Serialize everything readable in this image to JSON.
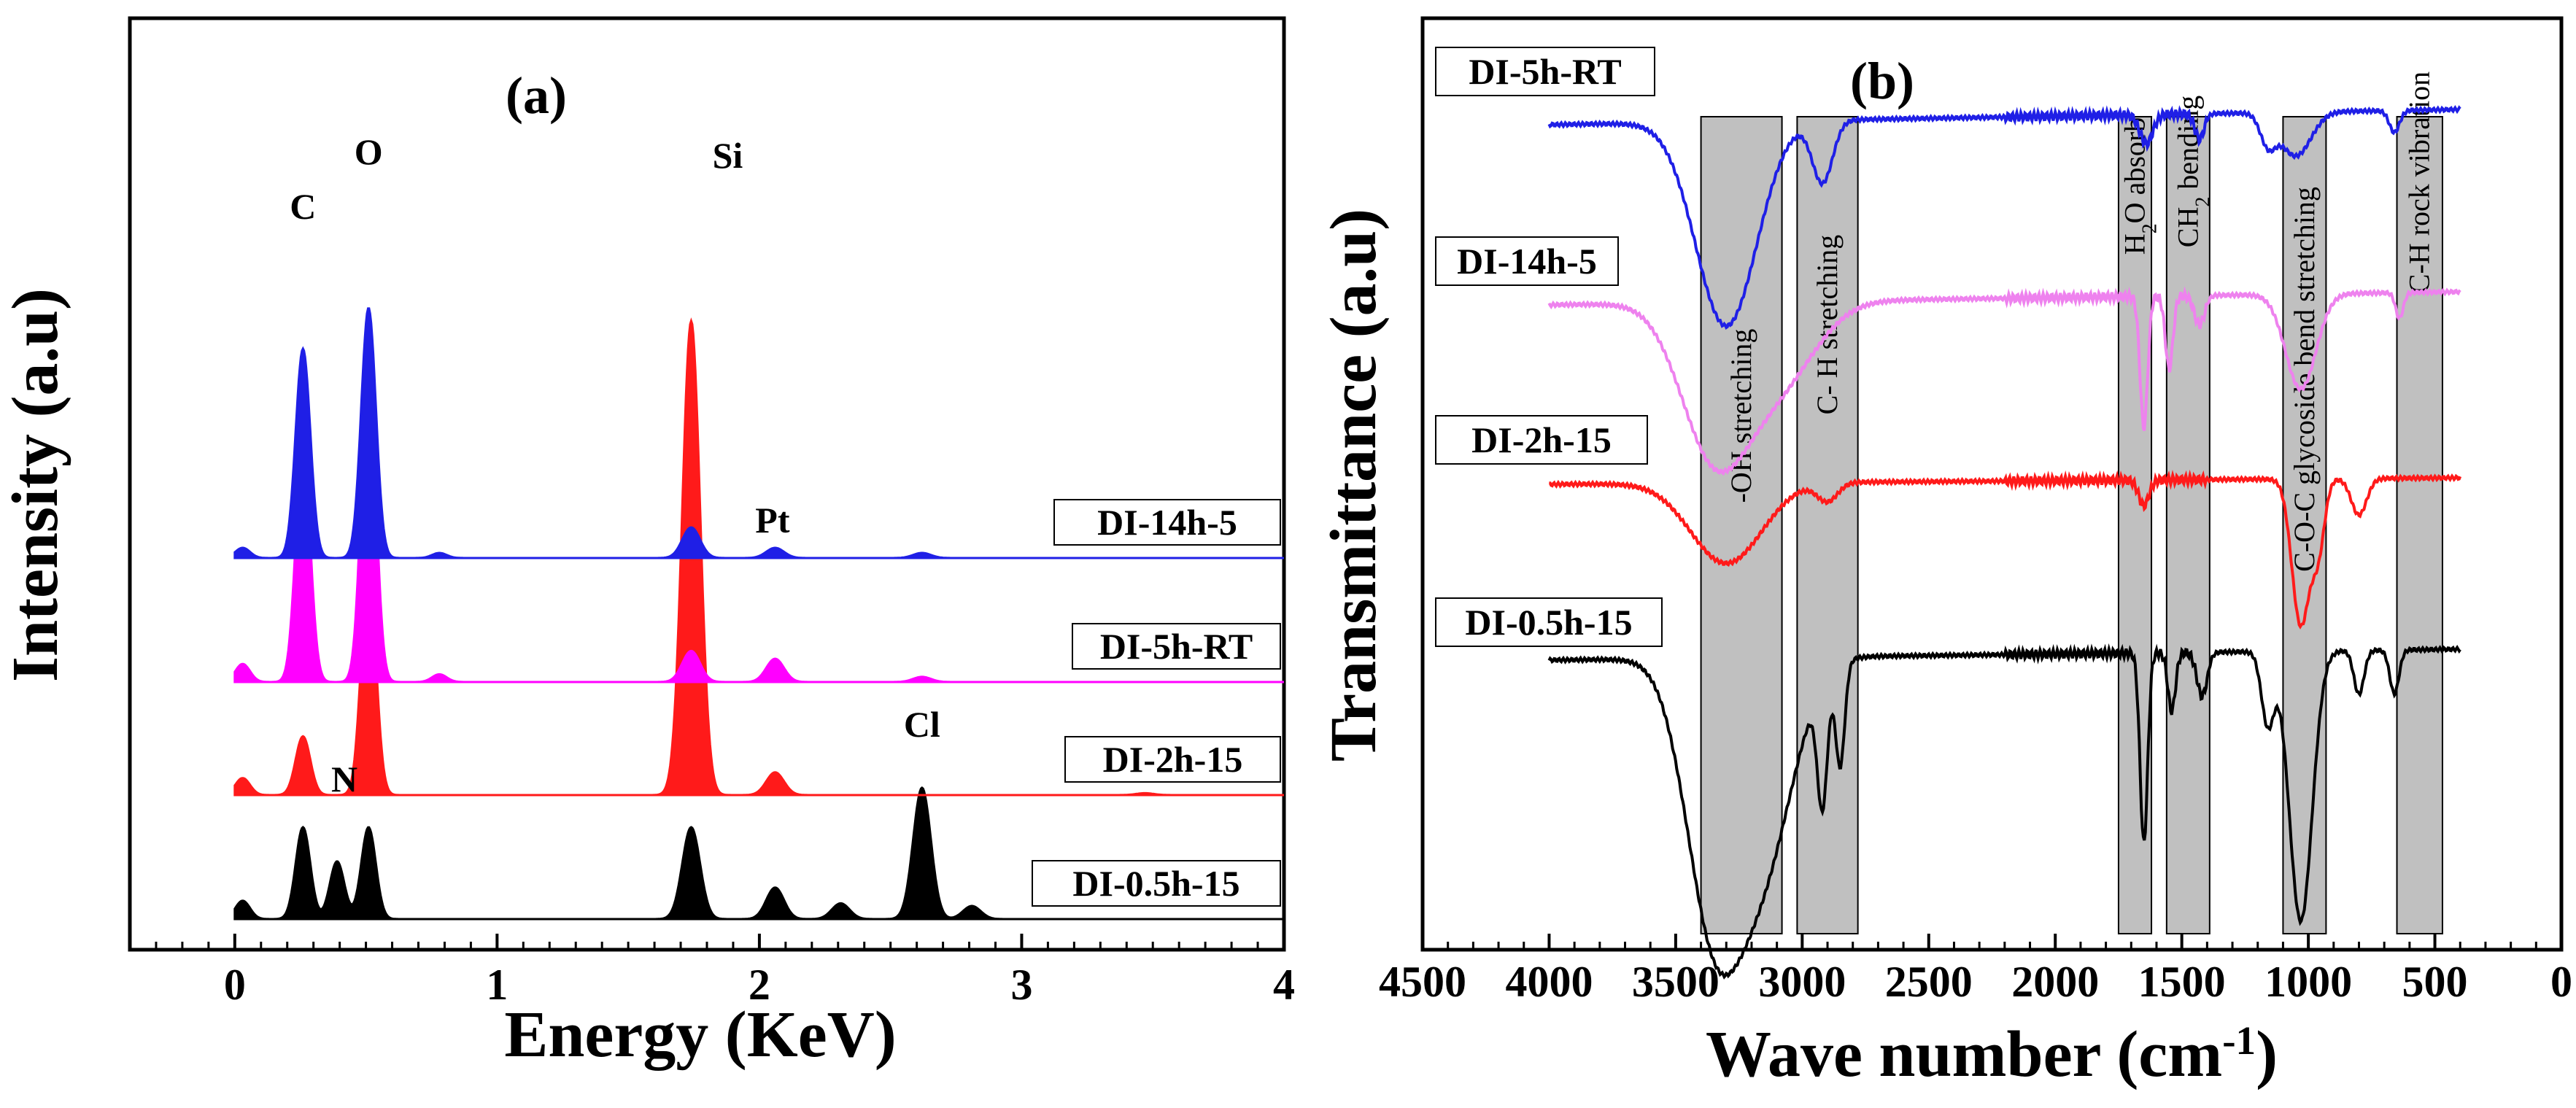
{
  "colors": {
    "blue": "#1f1fe6",
    "magenta": "#ff00ff",
    "red": "#ff1a1a",
    "black": "#000000",
    "violet": "#ee82ee",
    "band_fill": "#c0c0c0"
  },
  "chart_data": [
    {
      "type": "area",
      "panel_label": "(a)",
      "xlabel": "Energy (KeV)",
      "ylabel": "Intensity (a.u)",
      "xlim": [
        -0.4,
        4.0
      ],
      "x_ticks": [
        "0",
        "1",
        "2",
        "3",
        "4"
      ],
      "grid": false,
      "peak_labels": [
        {
          "text": "C",
          "x": 0.26
        },
        {
          "text": "O",
          "x": 0.51
        },
        {
          "text": "N",
          "x": 0.39
        },
        {
          "text": "Si",
          "x": 1.74
        },
        {
          "text": "Pt",
          "x": 2.05
        },
        {
          "text": "Cl",
          "x": 2.62
        }
      ],
      "series": [
        {
          "name": "DI-0.5h-15",
          "color": "black",
          "peaks": [
            {
              "x": 0.03,
              "h": 0.07
            },
            {
              "x": 0.26,
              "h": 0.35
            },
            {
              "x": 0.39,
              "h": 0.22
            },
            {
              "x": 0.51,
              "h": 0.35
            },
            {
              "x": 1.74,
              "h": 0.35
            },
            {
              "x": 2.06,
              "h": 0.12
            },
            {
              "x": 2.31,
              "h": 0.06
            },
            {
              "x": 2.62,
              "h": 0.5
            },
            {
              "x": 2.81,
              "h": 0.05
            }
          ]
        },
        {
          "name": "DI-2h-15",
          "color": "red",
          "peaks": [
            {
              "x": 0.03,
              "h": 0.09
            },
            {
              "x": 0.26,
              "h": 0.31
            },
            {
              "x": 0.51,
              "h": 1.2
            },
            {
              "x": 1.74,
              "h": 2.5
            },
            {
              "x": 2.06,
              "h": 0.12
            },
            {
              "x": 3.47,
              "h": 0.01
            }
          ]
        },
        {
          "name": "DI-5h-RT",
          "color": "magenta",
          "peaks": [
            {
              "x": 0.03,
              "h": 0.07
            },
            {
              "x": 0.26,
              "h": 0.9
            },
            {
              "x": 0.51,
              "h": 1.2
            },
            {
              "x": 0.78,
              "h": 0.03
            },
            {
              "x": 1.74,
              "h": 0.12
            },
            {
              "x": 2.06,
              "h": 0.09
            },
            {
              "x": 2.62,
              "h": 0.02
            }
          ]
        },
        {
          "name": "DI-14h-5",
          "color": "blue",
          "peaks": [
            {
              "x": 0.03,
              "h": 0.04
            },
            {
              "x": 0.26,
              "h": 0.82
            },
            {
              "x": 0.51,
              "h": 0.98
            },
            {
              "x": 0.78,
              "h": 0.02
            },
            {
              "x": 1.74,
              "h": 0.12
            },
            {
              "x": 2.06,
              "h": 0.04
            },
            {
              "x": 2.62,
              "h": 0.02
            }
          ]
        }
      ]
    },
    {
      "type": "line",
      "panel_label": "(b)",
      "xlabel": "Wave number (cm",
      "xlabel_sup": "-1",
      "xlabel_end": ")",
      "ylabel": "Transmittance (a.u)",
      "xlim": [
        4500,
        0
      ],
      "x_ticks": [
        "4500",
        "4000",
        "3500",
        "3000",
        "2500",
        "2000",
        "1500",
        "1000",
        "500",
        "0"
      ],
      "grid": false,
      "bands": [
        {
          "label": "-OH stretching",
          "from": 3400,
          "to": 3080
        },
        {
          "label": "C- H stretching",
          "from": 3020,
          "to": 2780
        },
        {
          "label": "H",
          "label_sub": "2",
          "label_end": "O absorb",
          "from": 1750,
          "to": 1620
        },
        {
          "label": "CH",
          "label_sub": "2",
          "label_end": " bending",
          "from": 1560,
          "to": 1390
        },
        {
          "label": "C-O-C glycoside bend stretching",
          "from": 1100,
          "to": 930
        },
        {
          "label": "C-H rock vibration",
          "from": 650,
          "to": 470
        }
      ],
      "series": [
        {
          "name": "DI-5h-RT",
          "color": "blue"
        },
        {
          "name": "DI-14h-5",
          "color": "violet"
        },
        {
          "name": "DI-2h-15",
          "color": "red"
        },
        {
          "name": "DI-0.5h-15",
          "color": "black"
        }
      ]
    }
  ]
}
